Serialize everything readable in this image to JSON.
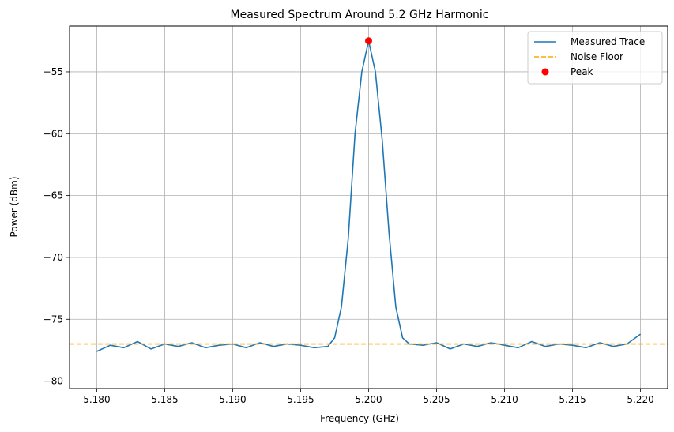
{
  "chart_data": {
    "type": "line",
    "title": "Measured Spectrum Around 5.2 GHz Harmonic",
    "xlabel": "Frequency (GHz)",
    "ylabel": "Power (dBm)",
    "xlim": [
      5.178,
      5.222
    ],
    "ylim": [
      -80.6,
      -51.3
    ],
    "xticks": [
      5.18,
      5.185,
      5.19,
      5.195,
      5.2,
      5.205,
      5.21,
      5.215,
      5.22
    ],
    "xtick_labels": [
      "5.180",
      "5.185",
      "5.190",
      "5.195",
      "5.200",
      "5.205",
      "5.210",
      "5.215",
      "5.220"
    ],
    "yticks": [
      -80,
      -75,
      -70,
      -65,
      -60,
      -55
    ],
    "ytick_labels": [
      "−80",
      "−75",
      "−70",
      "−65",
      "−60",
      "−55"
    ],
    "grid": true,
    "legend_position": "top-right",
    "series": [
      {
        "name": "Measured Trace",
        "color": "#1f77b4",
        "style": "solid",
        "x": [
          5.18,
          5.181,
          5.182,
          5.183,
          5.184,
          5.185,
          5.186,
          5.187,
          5.188,
          5.189,
          5.19,
          5.191,
          5.192,
          5.193,
          5.194,
          5.195,
          5.196,
          5.197,
          5.1975,
          5.198,
          5.1985,
          5.199,
          5.1995,
          5.2,
          5.2005,
          5.201,
          5.2015,
          5.202,
          5.2025,
          5.203,
          5.204,
          5.205,
          5.206,
          5.207,
          5.208,
          5.209,
          5.21,
          5.211,
          5.212,
          5.213,
          5.214,
          5.215,
          5.216,
          5.217,
          5.218,
          5.219,
          5.22
        ],
        "y": [
          -77.6,
          -77.1,
          -77.3,
          -76.8,
          -77.4,
          -77.0,
          -77.2,
          -76.9,
          -77.3,
          -77.1,
          -77.0,
          -77.3,
          -76.9,
          -77.2,
          -77.0,
          -77.1,
          -77.3,
          -77.2,
          -76.5,
          -74.0,
          -68.5,
          -60.0,
          -55.0,
          -52.5,
          -55.0,
          -60.5,
          -68.0,
          -74.0,
          -76.5,
          -77.0,
          -77.1,
          -76.9,
          -77.4,
          -77.0,
          -77.2,
          -76.9,
          -77.1,
          -77.3,
          -76.8,
          -77.2,
          -77.0,
          -77.1,
          -77.3,
          -76.9,
          -77.2,
          -77.0,
          -76.2
        ]
      },
      {
        "name": "Noise Floor",
        "color": "#ffa500",
        "style": "dashed",
        "value": -77.0
      },
      {
        "name": "Peak",
        "color": "#ff0000",
        "style": "marker",
        "x": 5.2,
        "y": -52.5
      }
    ]
  }
}
